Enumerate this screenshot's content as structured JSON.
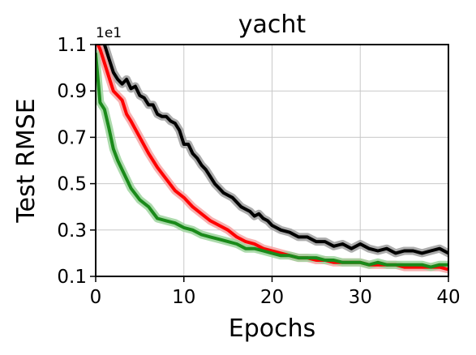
{
  "chart_data": {
    "type": "line",
    "title": "yacht",
    "xlabel": "Epochs",
    "ylabel": "Test RMSE",
    "y_offset_label": "1e1",
    "xlim": [
      0,
      40
    ],
    "ylim": [
      0.1,
      1.1
    ],
    "x_ticks": [
      0,
      10,
      20,
      30,
      40
    ],
    "x_tick_labels": [
      "0",
      "10",
      "20",
      "30",
      "40"
    ],
    "y_ticks": [
      0.1,
      0.3,
      0.5,
      0.7,
      0.9,
      1.1
    ],
    "y_tick_labels": [
      "0.1",
      "0.3",
      "0.5",
      "0.7",
      "0.9",
      "1.1"
    ],
    "grid": true,
    "series": [
      {
        "color": "#000000",
        "band_color": "#9e9e9e",
        "points": [
          [
            0,
            1.12
          ],
          [
            0.5,
            1.13
          ],
          [
            1,
            1.1
          ],
          [
            1.5,
            1.04
          ],
          [
            2,
            0.98
          ],
          [
            2.5,
            0.95
          ],
          [
            3,
            0.93
          ],
          [
            3.5,
            0.95
          ],
          [
            4,
            0.91
          ],
          [
            4.5,
            0.92
          ],
          [
            5,
            0.88
          ],
          [
            5.5,
            0.87
          ],
          [
            6,
            0.84
          ],
          [
            6.5,
            0.84
          ],
          [
            7,
            0.8
          ],
          [
            7.5,
            0.79
          ],
          [
            8,
            0.79
          ],
          [
            8.5,
            0.77
          ],
          [
            9,
            0.76
          ],
          [
            9.5,
            0.73
          ],
          [
            10,
            0.67
          ],
          [
            10.5,
            0.67
          ],
          [
            11,
            0.63
          ],
          [
            11.5,
            0.61
          ],
          [
            12,
            0.58
          ],
          [
            12.5,
            0.56
          ],
          [
            13,
            0.53
          ],
          [
            13.5,
            0.5
          ],
          [
            14,
            0.48
          ],
          [
            14.5,
            0.46
          ],
          [
            15,
            0.45
          ],
          [
            15.5,
            0.44
          ],
          [
            16,
            0.42
          ],
          [
            16.5,
            0.4
          ],
          [
            17,
            0.39
          ],
          [
            17.5,
            0.38
          ],
          [
            18,
            0.36
          ],
          [
            18.5,
            0.37
          ],
          [
            19,
            0.35
          ],
          [
            19.5,
            0.34
          ],
          [
            20,
            0.32
          ],
          [
            21,
            0.3
          ],
          [
            22,
            0.29
          ],
          [
            23,
            0.27
          ],
          [
            24,
            0.27
          ],
          [
            25,
            0.25
          ],
          [
            26,
            0.25
          ],
          [
            27,
            0.23
          ],
          [
            28,
            0.24
          ],
          [
            29,
            0.22
          ],
          [
            30,
            0.24
          ],
          [
            31,
            0.22
          ],
          [
            32,
            0.21
          ],
          [
            33,
            0.22
          ],
          [
            34,
            0.2
          ],
          [
            35,
            0.21
          ],
          [
            36,
            0.21
          ],
          [
            37,
            0.2
          ],
          [
            38,
            0.21
          ],
          [
            39,
            0.22
          ],
          [
            40,
            0.2
          ]
        ]
      },
      {
        "color": "#ff0000",
        "band_color": "#f5a3a3",
        "points": [
          [
            0,
            1.12
          ],
          [
            0.5,
            1.08
          ],
          [
            1,
            1.02
          ],
          [
            1.5,
            0.96
          ],
          [
            2,
            0.9
          ],
          [
            2.5,
            0.88
          ],
          [
            3,
            0.86
          ],
          [
            3.5,
            0.8
          ],
          [
            4,
            0.77
          ],
          [
            5,
            0.7
          ],
          [
            6,
            0.63
          ],
          [
            7,
            0.57
          ],
          [
            8,
            0.52
          ],
          [
            9,
            0.47
          ],
          [
            10,
            0.44
          ],
          [
            11,
            0.4
          ],
          [
            12,
            0.37
          ],
          [
            13,
            0.34
          ],
          [
            14,
            0.32
          ],
          [
            15,
            0.3
          ],
          [
            16,
            0.27
          ],
          [
            17,
            0.25
          ],
          [
            18,
            0.24
          ],
          [
            19,
            0.22
          ],
          [
            20,
            0.21
          ],
          [
            21,
            0.2
          ],
          [
            22,
            0.19
          ],
          [
            23,
            0.18
          ],
          [
            24,
            0.18
          ],
          [
            25,
            0.17
          ],
          [
            26,
            0.17
          ],
          [
            27,
            0.16
          ],
          [
            28,
            0.16
          ],
          [
            29,
            0.16
          ],
          [
            30,
            0.16
          ],
          [
            31,
            0.15
          ],
          [
            32,
            0.15
          ],
          [
            33,
            0.15
          ],
          [
            34,
            0.15
          ],
          [
            35,
            0.14
          ],
          [
            36,
            0.14
          ],
          [
            37,
            0.14
          ],
          [
            38,
            0.14
          ],
          [
            39,
            0.14
          ],
          [
            40,
            0.13
          ]
        ]
      },
      {
        "color": "#1a8a1a",
        "band_color": "#9cd49c",
        "points": [
          [
            0,
            1.06
          ],
          [
            0.5,
            0.85
          ],
          [
            1,
            0.82
          ],
          [
            1.5,
            0.74
          ],
          [
            2,
            0.65
          ],
          [
            2.5,
            0.6
          ],
          [
            3,
            0.56
          ],
          [
            3.5,
            0.52
          ],
          [
            4,
            0.48
          ],
          [
            5,
            0.43
          ],
          [
            6,
            0.4
          ],
          [
            7,
            0.35
          ],
          [
            8,
            0.34
          ],
          [
            9,
            0.33
          ],
          [
            10,
            0.31
          ],
          [
            11,
            0.3
          ],
          [
            12,
            0.28
          ],
          [
            13,
            0.27
          ],
          [
            14,
            0.26
          ],
          [
            15,
            0.25
          ],
          [
            16,
            0.24
          ],
          [
            17,
            0.22
          ],
          [
            18,
            0.22
          ],
          [
            19,
            0.21
          ],
          [
            20,
            0.2
          ],
          [
            21,
            0.19
          ],
          [
            22,
            0.19
          ],
          [
            23,
            0.18
          ],
          [
            24,
            0.18
          ],
          [
            25,
            0.18
          ],
          [
            26,
            0.17
          ],
          [
            27,
            0.17
          ],
          [
            28,
            0.16
          ],
          [
            29,
            0.16
          ],
          [
            30,
            0.16
          ],
          [
            31,
            0.15
          ],
          [
            32,
            0.16
          ],
          [
            33,
            0.15
          ],
          [
            34,
            0.15
          ],
          [
            35,
            0.15
          ],
          [
            36,
            0.15
          ],
          [
            37,
            0.15
          ],
          [
            38,
            0.14
          ],
          [
            39,
            0.15
          ],
          [
            40,
            0.15
          ]
        ]
      }
    ]
  }
}
